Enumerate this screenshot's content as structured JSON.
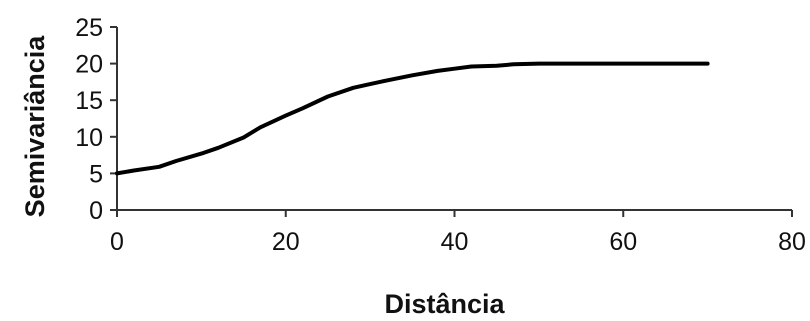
{
  "chart_data": {
    "type": "line",
    "title": "",
    "xlabel": "Distância",
    "ylabel": "Semivariância",
    "xlim": [
      0,
      80
    ],
    "ylim": [
      0,
      25
    ],
    "x_ticks": [
      0,
      20,
      40,
      60,
      80
    ],
    "y_ticks": [
      0,
      5,
      10,
      15,
      20,
      25
    ],
    "grid": false,
    "legend": "none",
    "series": [
      {
        "color": "#000000",
        "x": [
          0,
          2,
          5,
          7,
          10,
          12,
          15,
          17,
          20,
          22,
          25,
          28,
          30,
          32,
          35,
          38,
          40,
          42,
          45,
          47,
          50,
          55,
          60,
          65,
          70
        ],
        "y": [
          5.0,
          5.4,
          5.9,
          6.7,
          7.7,
          8.5,
          9.9,
          11.3,
          12.9,
          13.9,
          15.5,
          16.7,
          17.2,
          17.7,
          18.4,
          19.0,
          19.3,
          19.6,
          19.7,
          19.9,
          20.0,
          20.0,
          20.0,
          20.0,
          20.0
        ]
      }
    ]
  }
}
